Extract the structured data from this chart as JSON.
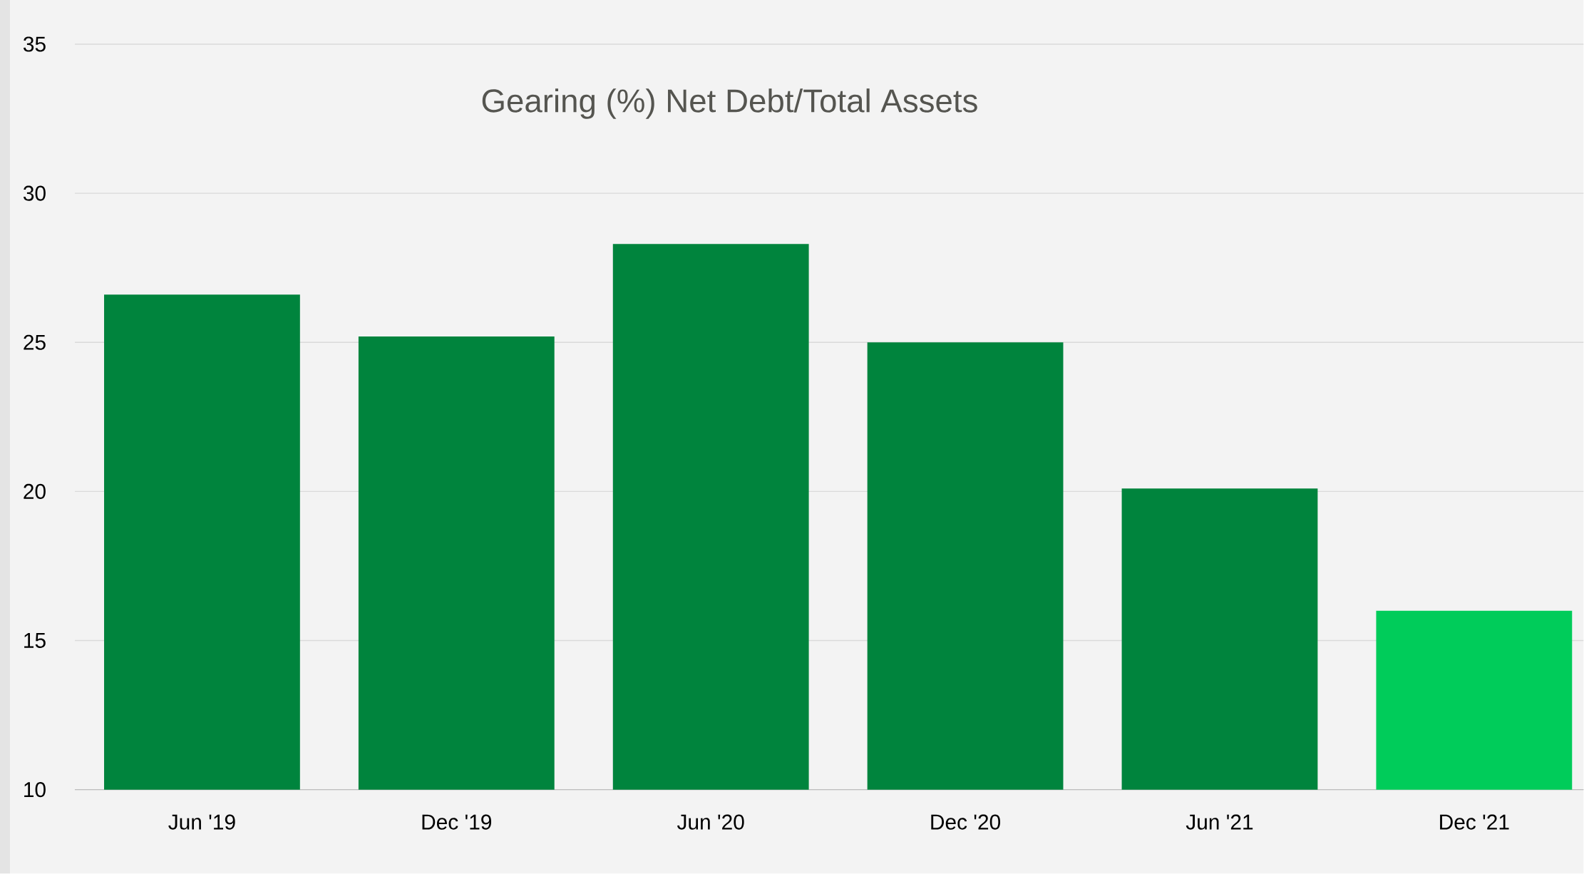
{
  "chart_data": {
    "type": "bar",
    "title": "Gearing (%) Net Debt/Total Assets",
    "categories": [
      "Jun '19",
      "Dec '19",
      "Jun '20",
      "Dec '20",
      "Jun '21",
      "Dec '21"
    ],
    "values": [
      26.6,
      25.2,
      28.3,
      25.0,
      20.1,
      16.0
    ],
    "colors": [
      "#00843d",
      "#00843d",
      "#00843d",
      "#00843d",
      "#00843d",
      "#00cc5a"
    ],
    "ylim": [
      10,
      35
    ],
    "yticks": [
      10,
      15,
      20,
      25,
      30,
      35
    ],
    "grid": "y"
  }
}
